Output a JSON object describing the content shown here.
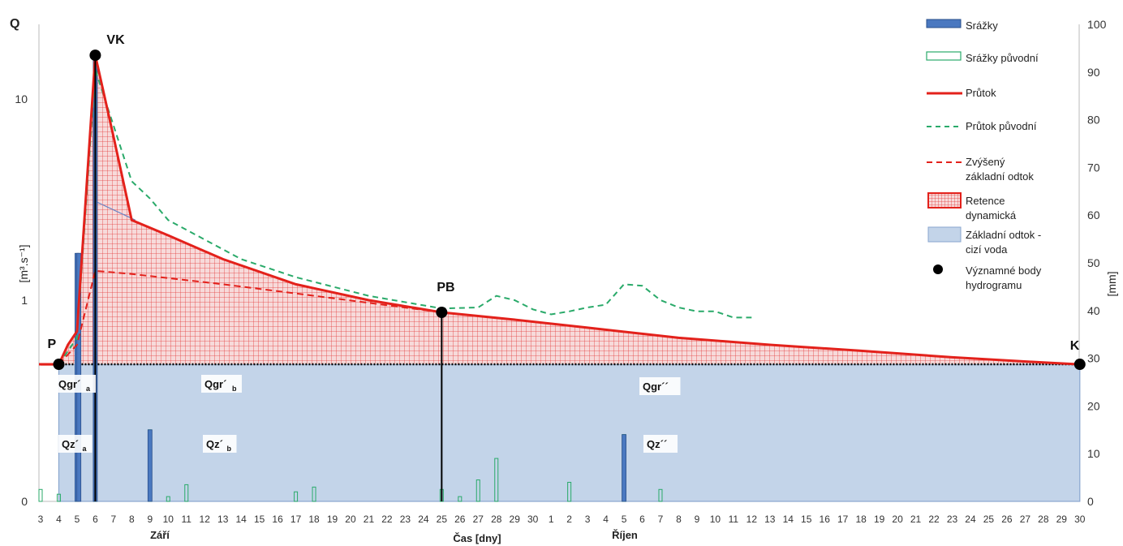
{
  "chart_data": {
    "type": "hydrograph",
    "left_axis": {
      "title": "Q",
      "unit_label": "[m³.s⁻¹]",
      "scale": "log",
      "tick_labels": [
        "0",
        "1",
        "10"
      ]
    },
    "right_axis": {
      "unit_label": "[mm]",
      "range": [
        0,
        100
      ],
      "tick_labels": [
        "0",
        "10",
        "20",
        "30",
        "40",
        "50",
        "60",
        "70",
        "80",
        "90",
        "100"
      ]
    },
    "x_axis": {
      "title": "Čas [dny]",
      "tick_labels": [
        "3",
        "4",
        "5",
        "6",
        "7",
        "8",
        "9",
        "10",
        "11",
        "12",
        "13",
        "14",
        "15",
        "16",
        "17",
        "18",
        "19",
        "20",
        "21",
        "22",
        "23",
        "24",
        "25",
        "26",
        "27",
        "28",
        "29",
        "30",
        "1",
        "2",
        "3",
        "4",
        "5",
        "6",
        "7",
        "8",
        "9",
        "10",
        "11",
        "12",
        "13",
        "14",
        "15",
        "16",
        "17",
        "18",
        "19",
        "20",
        "21",
        "22",
        "23",
        "24",
        "25",
        "26",
        "27",
        "28",
        "29",
        "30"
      ],
      "months": [
        "Září",
        "Říjen"
      ]
    },
    "legend": [
      {
        "key": "precip",
        "label": "Srážky"
      },
      {
        "key": "precip_orig",
        "label": "Srážky původní"
      },
      {
        "key": "flow",
        "label": "Průtok"
      },
      {
        "key": "flow_orig",
        "label": "Průtok původní"
      },
      {
        "key": "base_raised",
        "label": "Zvýšený základní odtok"
      },
      {
        "key": "retention",
        "label": "Retence dynamická"
      },
      {
        "key": "baseflow",
        "label": "Základní odtok - cizí voda"
      },
      {
        "key": "points",
        "label": "Významné body hydrogramu"
      }
    ],
    "key_points": [
      {
        "label": "P",
        "day_index": 1,
        "q": 0.48
      },
      {
        "label": "VK",
        "day_index": 3,
        "q": 16.5
      },
      {
        "label": "PB",
        "day_index": 22,
        "q": 0.87
      },
      {
        "label": "K",
        "day_index": 57,
        "q": 0.48
      }
    ],
    "region_labels": [
      {
        "id": "qgr_a",
        "main": "Qgr´",
        "sub": "a"
      },
      {
        "id": "qgr_b",
        "main": "Qgr´",
        "sub": "b"
      },
      {
        "id": "qgr2",
        "main": "Qgr´´",
        "sub": ""
      },
      {
        "id": "qz_a",
        "main": "Qz´",
        "sub": "a"
      },
      {
        "id": "qz_b",
        "main": "Qz´",
        "sub": "b"
      },
      {
        "id": "qz2",
        "main": "Qz´´",
        "sub": ""
      }
    ],
    "series": {
      "flow": [
        [
          0,
          0.48
        ],
        [
          1,
          0.48
        ],
        [
          1.5,
          0.6
        ],
        [
          2,
          0.7
        ],
        [
          3,
          16.5
        ],
        [
          4,
          6.5
        ],
        [
          5,
          2.5
        ],
        [
          7,
          2.1
        ],
        [
          10,
          1.6
        ],
        [
          14,
          1.2
        ],
        [
          18,
          1.0
        ],
        [
          22,
          0.87
        ],
        [
          26,
          0.8
        ],
        [
          30,
          0.73
        ],
        [
          35,
          0.65
        ],
        [
          40,
          0.6
        ],
        [
          45,
          0.56
        ],
        [
          50,
          0.52
        ],
        [
          55,
          0.49
        ],
        [
          57,
          0.48
        ]
      ],
      "flow_orig": [
        [
          1,
          0.48
        ],
        [
          2,
          0.65
        ],
        [
          3,
          14
        ],
        [
          5,
          3.9
        ],
        [
          6,
          3.2
        ],
        [
          7,
          2.5
        ],
        [
          9,
          2.0
        ],
        [
          11,
          1.6
        ],
        [
          14,
          1.3
        ],
        [
          18,
          1.05
        ],
        [
          22,
          0.91
        ],
        [
          24,
          0.92
        ],
        [
          25,
          1.05
        ],
        [
          26,
          1.0
        ],
        [
          27,
          0.9
        ],
        [
          28,
          0.85
        ],
        [
          29,
          0.88
        ],
        [
          30,
          0.92
        ],
        [
          31,
          0.95
        ],
        [
          32,
          1.2
        ],
        [
          33,
          1.18
        ],
        [
          34,
          1.0
        ],
        [
          35,
          0.92
        ],
        [
          36,
          0.88
        ],
        [
          37,
          0.88
        ],
        [
          38,
          0.82
        ],
        [
          39,
          0.82
        ]
      ],
      "base_raised": [
        [
          1,
          0.48
        ],
        [
          2,
          0.6
        ],
        [
          3,
          1.4
        ],
        [
          5,
          1.35
        ],
        [
          10,
          1.2
        ],
        [
          14,
          1.08
        ],
        [
          18,
          0.97
        ],
        [
          22,
          0.87
        ]
      ],
      "baseflow_q": 0.48,
      "precip_mm": [
        [
          0,
          2.5
        ],
        [
          1,
          1.5
        ],
        [
          1.1,
          1.5
        ],
        [
          2,
          52
        ],
        [
          2.1,
          52
        ],
        [
          3,
          94
        ],
        [
          6,
          15
        ],
        [
          7,
          1
        ],
        [
          8,
          3.5
        ],
        [
          14,
          2
        ],
        [
          15,
          3
        ],
        [
          22,
          2.5
        ],
        [
          23,
          1
        ],
        [
          24,
          4.5
        ],
        [
          25,
          9
        ],
        [
          29,
          4
        ],
        [
          32,
          14
        ],
        [
          34,
          2.5
        ]
      ],
      "precip_orig_mm": [
        [
          0,
          2.5
        ],
        [
          1,
          1.5
        ],
        [
          2,
          2
        ],
        [
          3,
          1.5
        ],
        [
          6,
          15
        ],
        [
          7,
          1
        ],
        [
          8,
          3.5
        ],
        [
          14,
          2
        ],
        [
          15,
          3
        ],
        [
          22,
          2.5
        ],
        [
          23,
          1
        ],
        [
          24,
          4.5
        ],
        [
          25,
          9
        ],
        [
          29,
          4
        ],
        [
          32,
          14
        ],
        [
          34,
          2.5
        ]
      ]
    },
    "colors": {
      "flow": "#e3211b",
      "flow_orig": "#2aaa6a",
      "base_raised": "#e3211b",
      "retention_fill": "#f5d9d9",
      "retention_grid": "#e33c3c",
      "baseflow_fill": "#c3d4e9",
      "baseflow_edge": "#8aa6cf",
      "precip": "#4a78c0",
      "precip_orig": "#2aaa6a",
      "points": "#000000"
    }
  }
}
